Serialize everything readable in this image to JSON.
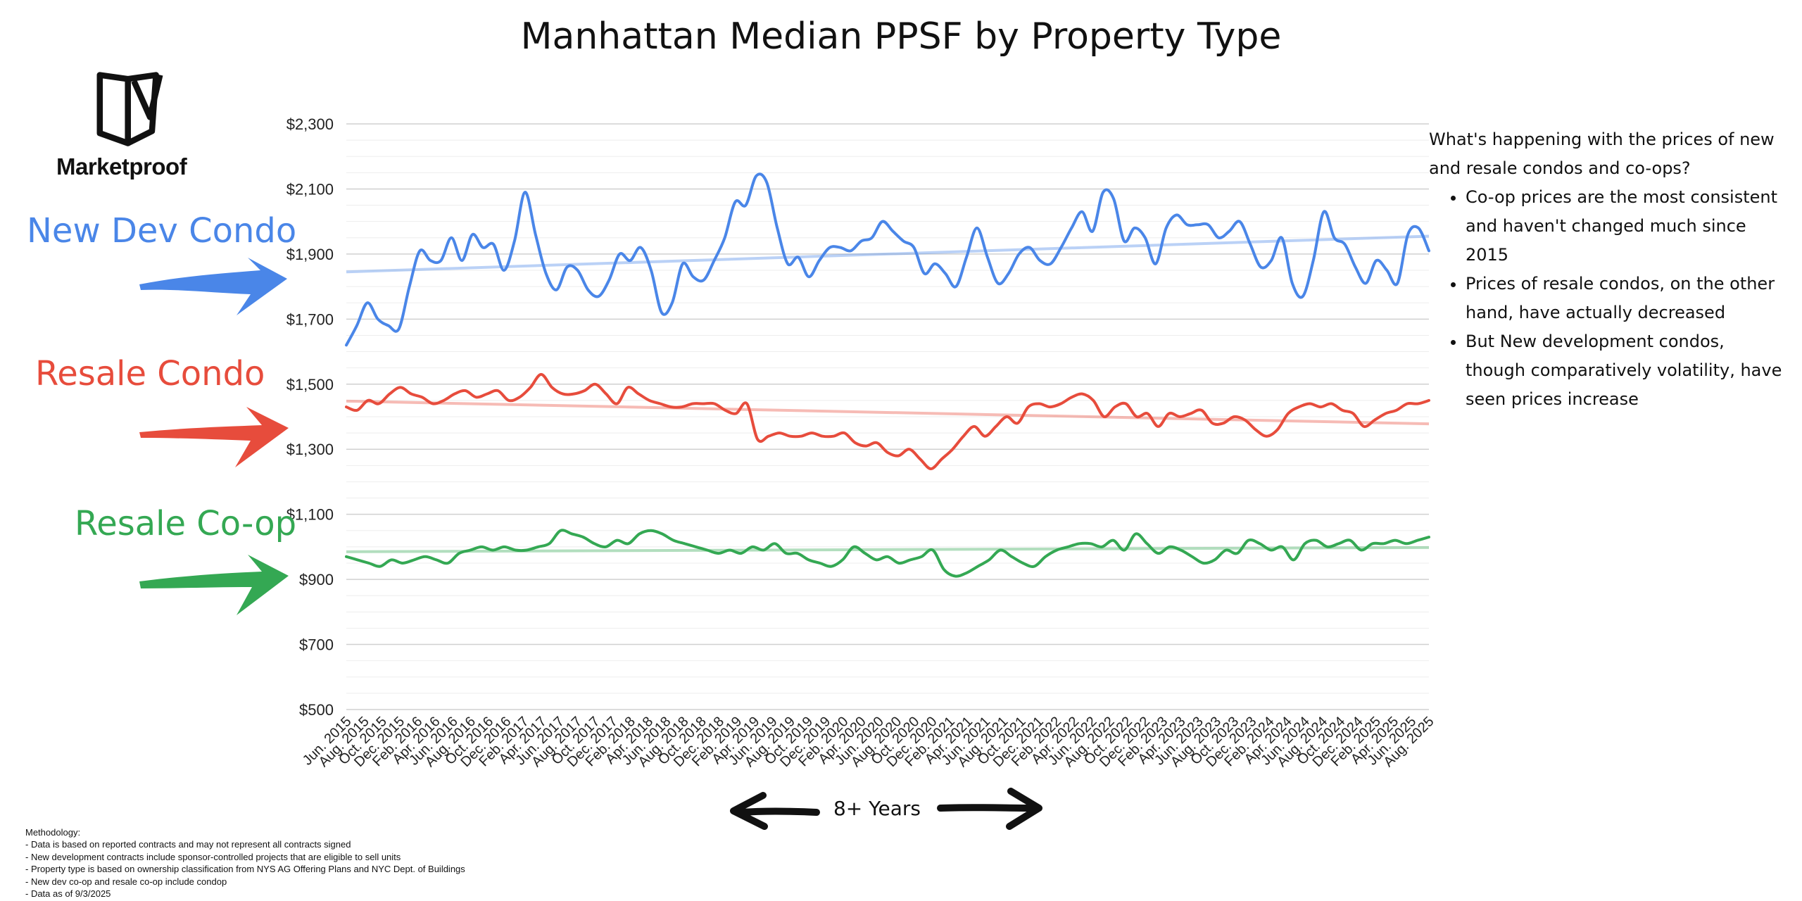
{
  "title": "Manhattan Median PPSF by Property Type",
  "logo": {
    "name": "Marketproof"
  },
  "labels": {
    "new_dev": "New Dev Condo",
    "resale_condo": "Resale Condo",
    "resale_coop": "Resale Co-op"
  },
  "colors": {
    "new_dev": "#4a86e8",
    "resale_condo": "#e74c3c",
    "resale_coop": "#34a853"
  },
  "notes": {
    "heading": "What's happening with the prices of new and resale condos and co-ops?",
    "bullets": [
      "Co-op prices are the most consistent and haven't changed much since 2015",
      "Prices of resale condos, on the other hand, have actually decreased",
      "But New development condos, though comparatively volatility, have seen prices increase"
    ]
  },
  "years_label": "8+ Years",
  "methodology": [
    "Methodology:",
    "- Data is based on reported contracts and may not represent all contracts signed",
    "- New development contracts include sponsor-controlled projects that are eligible to sell units",
    "- Property type is based on ownership classification from NYS AG Offering Plans and NYC Dept. of Buildings",
    "- New dev co-op and resale co-op include condop",
    "- Data as of 9/3/2025"
  ],
  "chart_data": {
    "type": "line",
    "title": "Manhattan Median PPSF by Property Type",
    "y_ticks": [
      "$500",
      "$700",
      "$900",
      "$1,100",
      "$1,300",
      "$1,500",
      "$1,700",
      "$1,900",
      "$2,100",
      "$2,300"
    ],
    "ylim": [
      500,
      2300
    ],
    "grid": true,
    "x_tick_labels": [
      "Jun. 2015",
      "Aug. 2015",
      "Oct. 2015",
      "Dec. 2015",
      "Feb. 2016",
      "Apr. 2016",
      "Jun. 2016",
      "Aug. 2016",
      "Oct. 2016",
      "Dec. 2016",
      "Feb. 2017",
      "Apr. 2017",
      "Jun. 2017",
      "Aug. 2017",
      "Oct. 2017",
      "Dec. 2017",
      "Feb. 2018",
      "Apr. 2018",
      "Jun. 2018",
      "Aug. 2018",
      "Oct. 2018",
      "Dec. 2018",
      "Feb. 2019",
      "Apr. 2019",
      "Jun. 2019",
      "Aug. 2019",
      "Oct. 2019",
      "Dec. 2019",
      "Feb. 2020",
      "Apr. 2020",
      "Jun. 2020",
      "Aug. 2020",
      "Oct. 2020",
      "Dec. 2020",
      "Feb. 2021",
      "Apr. 2021",
      "Jun. 2021",
      "Aug. 2021",
      "Oct. 2021",
      "Dec. 2021",
      "Feb. 2022",
      "Apr. 2022",
      "Jun. 2022",
      "Aug. 2022",
      "Oct. 2022",
      "Dec. 2022",
      "Feb. 2023",
      "Apr. 2023",
      "Jun. 2023",
      "Aug. 2023",
      "Oct. 2023",
      "Dec. 2023",
      "Feb. 2024",
      "Apr. 2024",
      "Jun. 2024",
      "Aug. 2024",
      "Oct. 2024",
      "Dec. 2024",
      "Feb. 2025",
      "Apr. 2025",
      "Jun. 2025",
      "Aug. 2025"
    ],
    "series": [
      {
        "key": "new_dev",
        "values": [
          1620,
          1680,
          1750,
          1700,
          1680,
          1670,
          1800,
          1910,
          1880,
          1880,
          1950,
          1880,
          1960,
          1920,
          1930,
          1850,
          1940,
          2090,
          1960,
          1840,
          1790,
          1860,
          1850,
          1790,
          1770,
          1820,
          1900,
          1880,
          1920,
          1850,
          1720,
          1750,
          1870,
          1830,
          1820,
          1880,
          1950,
          2060,
          2050,
          2140,
          2120,
          1980,
          1870,
          1890,
          1830,
          1880,
          1920,
          1920,
          1910,
          1940,
          1950,
          2000,
          1970,
          1940,
          1920,
          1840,
          1870,
          1840,
          1800,
          1890,
          1980,
          1890,
          1810,
          1840,
          1900,
          1920,
          1880,
          1870,
          1920,
          1980,
          2030,
          1970,
          2090,
          2070,
          1940,
          1980,
          1950,
          1870,
          1980,
          2020,
          1990,
          1990,
          1990,
          1950,
          1970,
          2000,
          1930,
          1860,
          1880,
          1950,
          1810,
          1770,
          1880,
          2030,
          1950,
          1930,
          1860,
          1810,
          1880,
          1850,
          1810,
          1960,
          1980,
          1910
        ],
        "trend": [
          1845,
          1955
        ]
      },
      {
        "key": "resale_condo",
        "values": [
          1430,
          1420,
          1450,
          1440,
          1470,
          1490,
          1470,
          1460,
          1440,
          1450,
          1470,
          1480,
          1460,
          1470,
          1480,
          1450,
          1460,
          1490,
          1530,
          1490,
          1470,
          1470,
          1480,
          1500,
          1470,
          1440,
          1490,
          1470,
          1450,
          1440,
          1430,
          1430,
          1440,
          1440,
          1440,
          1420,
          1410,
          1440,
          1330,
          1340,
          1350,
          1340,
          1340,
          1350,
          1340,
          1340,
          1350,
          1320,
          1310,
          1320,
          1290,
          1280,
          1300,
          1270,
          1240,
          1270,
          1300,
          1340,
          1370,
          1340,
          1370,
          1400,
          1380,
          1430,
          1440,
          1430,
          1440,
          1460,
          1470,
          1450,
          1400,
          1430,
          1440,
          1400,
          1410,
          1370,
          1410,
          1400,
          1410,
          1420,
          1380,
          1380,
          1400,
          1390,
          1360,
          1340,
          1360,
          1410,
          1430,
          1440,
          1430,
          1440,
          1420,
          1410,
          1370,
          1390,
          1410,
          1420,
          1440,
          1440,
          1450
        ],
        "trend": [
          1448,
          1378
        ]
      },
      {
        "key": "resale_coop",
        "values": [
          970,
          960,
          950,
          940,
          960,
          950,
          960,
          970,
          960,
          950,
          980,
          990,
          1000,
          990,
          1000,
          990,
          990,
          1000,
          1010,
          1050,
          1040,
          1030,
          1010,
          1000,
          1020,
          1010,
          1040,
          1050,
          1040,
          1020,
          1010,
          1000,
          990,
          980,
          990,
          980,
          1000,
          990,
          1010,
          980,
          980,
          960,
          950,
          940,
          960,
          1000,
          980,
          960,
          970,
          950,
          960,
          970,
          990,
          930,
          910,
          920,
          940,
          960,
          990,
          970,
          950,
          940,
          970,
          990,
          1000,
          1010,
          1010,
          1000,
          1020,
          990,
          1040,
          1010,
          980,
          1000,
          990,
          970,
          950,
          960,
          990,
          980,
          1020,
          1010,
          990,
          1000,
          960,
          1010,
          1020,
          1000,
          1010,
          1020,
          990,
          1010,
          1010,
          1020,
          1010,
          1020,
          1030
        ],
        "trend": [
          985,
          998
        ]
      }
    ]
  }
}
